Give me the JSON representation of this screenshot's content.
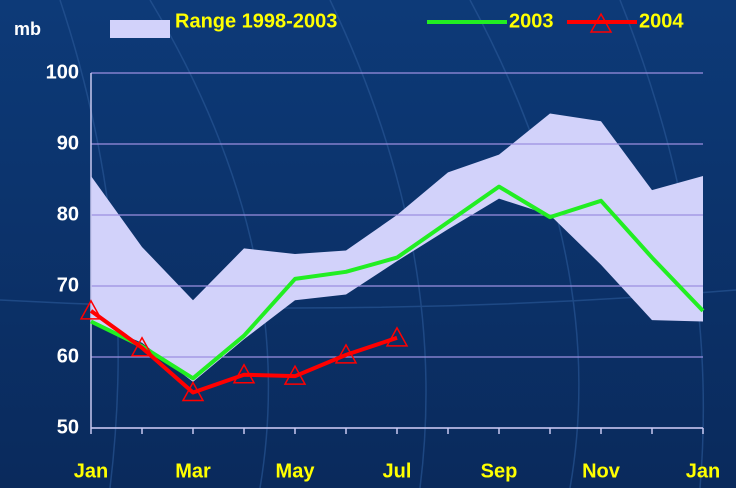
{
  "chart_data": {
    "type": "line",
    "y_label": "mb",
    "categories": [
      "Jan",
      null,
      "Mar",
      null,
      "May",
      null,
      "Jul",
      null,
      "Sep",
      null,
      "Nov",
      null,
      "Jan"
    ],
    "band": {
      "name": "Range 1998-2003",
      "color": "#d2d2fa",
      "high": [
        85.5,
        75.5,
        68,
        75.3,
        74.5,
        75,
        80,
        86,
        88.5,
        94.3,
        93.2,
        83.5,
        85.5
      ],
      "low": [
        65,
        62,
        56.5,
        62.5,
        68,
        68.8,
        73.5,
        78,
        82.3,
        80,
        73,
        65.2,
        65
      ]
    },
    "series": [
      {
        "name": "2003",
        "color": "#22ee22",
        "values": [
          65,
          61.5,
          57,
          63,
          71,
          72,
          74,
          79,
          84,
          79.7,
          82,
          74,
          66.5
        ]
      },
      {
        "name": "2004",
        "color": "#ff0000",
        "marker": "triangle",
        "values": [
          66.5,
          61.3,
          55,
          57.5,
          57.3,
          60.3,
          62.7,
          null,
          null,
          null,
          null,
          null,
          null
        ]
      }
    ],
    "ylim": [
      50,
      100
    ],
    "yticks": [
      50,
      60,
      70,
      80,
      90,
      100
    ],
    "grid": true
  }
}
